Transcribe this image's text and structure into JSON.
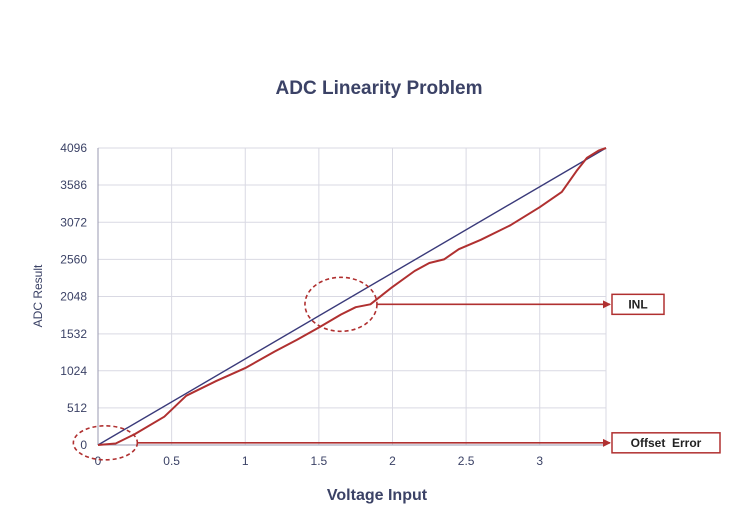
{
  "chart_data": {
    "type": "line",
    "title": "ADC Linearity Problem",
    "xlabel": "Voltage Input",
    "ylabel": "ADC Result",
    "xlim": [
      0,
      3.45
    ],
    "ylim": [
      0,
      4096
    ],
    "x_ticks": [
      0,
      0.5,
      1,
      1.5,
      2,
      2.5,
      3
    ],
    "x_tick_labels": [
      "0",
      "0.5",
      "1",
      "1.5",
      "2",
      "2.5",
      "3"
    ],
    "y_ticks": [
      0,
      512,
      1024,
      1532,
      2048,
      2560,
      3072,
      3586,
      4096
    ],
    "y_tick_labels": [
      "0",
      "512",
      "1024",
      "1532",
      "2048",
      "2560",
      "3072",
      "3586",
      "4096"
    ],
    "grid": true,
    "series": [
      {
        "color": "#3a3a7a",
        "x": [
          0,
          3.45
        ],
        "y": [
          0,
          4096
        ]
      },
      {
        "color": "#b03030",
        "x": [
          0,
          0.12,
          0.25,
          0.45,
          0.6,
          0.8,
          1.0,
          1.2,
          1.35,
          1.5,
          1.65,
          1.75,
          1.85,
          2.0,
          2.15,
          2.25,
          2.35,
          2.45,
          2.6,
          2.8,
          3.0,
          3.15,
          3.25,
          3.32,
          3.4,
          3.45
        ],
        "y": [
          0,
          20,
          150,
          390,
          680,
          880,
          1060,
          1290,
          1450,
          1620,
          1800,
          1900,
          1940,
          2180,
          2400,
          2510,
          2560,
          2700,
          2830,
          3030,
          3280,
          3490,
          3780,
          3960,
          4060,
          4096
        ]
      }
    ],
    "annotations": [
      {
        "text": "INL",
        "x": 1.65,
        "y": 1940,
        "shape": "dashed-ellipse",
        "arrow": "right"
      },
      {
        "text": "Offset  Error",
        "x": 0.05,
        "y": 30,
        "shape": "dashed-ellipse",
        "arrow": "right"
      }
    ],
    "annotation_color": "#b03030"
  }
}
